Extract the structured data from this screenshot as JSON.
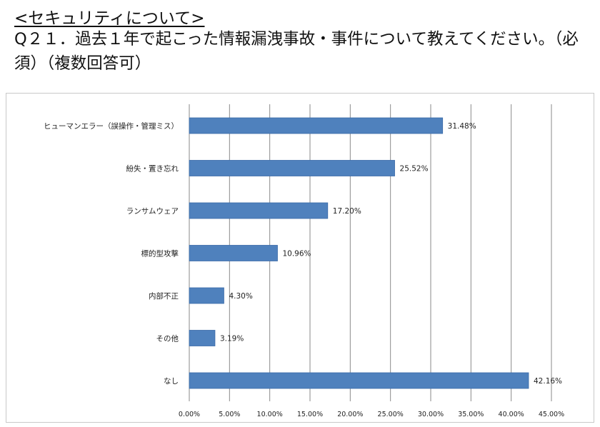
{
  "header": {
    "section": "<セキュリティについて>",
    "question": "Q２１．過去１年で起こった情報漏洩事故・事件について教えてください。（必須）（複数回答可）"
  },
  "chart_data": {
    "type": "bar",
    "orientation": "horizontal",
    "categories": [
      "ヒューマンエラー（誤操作・管理ミス）",
      "紛失・置き忘れ",
      "ランサムウェア",
      "標的型攻撃",
      "内部不正",
      "その他",
      "なし"
    ],
    "values": [
      31.48,
      25.52,
      17.2,
      10.96,
      4.3,
      3.19,
      42.16
    ],
    "value_labels": [
      "31.48%",
      "25.52%",
      "17.20%",
      "10.96%",
      "4.30%",
      "3.19%",
      "42.16%"
    ],
    "xlim": [
      0,
      45
    ],
    "xticks": [
      0,
      5,
      10,
      15,
      20,
      25,
      30,
      35,
      40,
      45
    ],
    "xtick_labels": [
      "0.00%",
      "5.00%",
      "10.00%",
      "15.00%",
      "20.00%",
      "25.00%",
      "30.00%",
      "35.00%",
      "40.00%",
      "45.00%"
    ],
    "grid": true,
    "bar_color": "#4f81bd",
    "bar_border_color": "#3a6aa8",
    "grid_color": "#8a8a8a"
  }
}
